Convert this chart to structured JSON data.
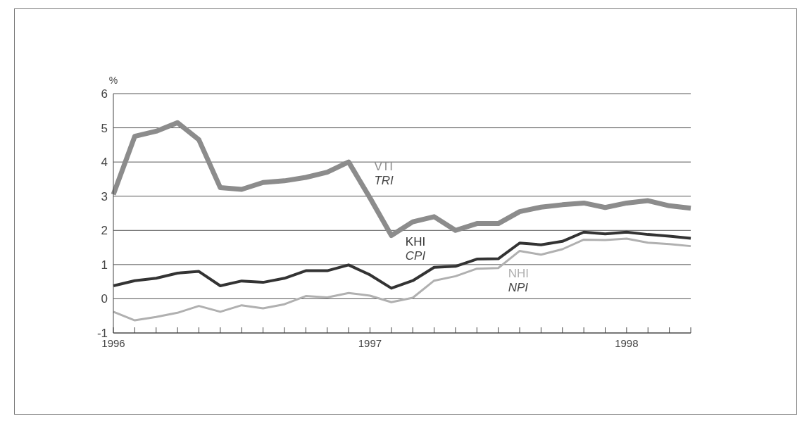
{
  "chart_data": {
    "type": "line",
    "ylabel": "%",
    "categories": [
      "1996",
      null,
      null,
      null,
      null,
      null,
      null,
      null,
      null,
      null,
      null,
      null,
      "1997",
      null,
      null,
      null,
      null,
      null,
      null,
      null,
      null,
      null,
      null,
      null,
      "1998",
      null,
      null,
      null
    ],
    "series": [
      {
        "name": "VTI",
        "color": "#8c8c8c",
        "values": [
          3.05,
          4.75,
          4.9,
          5.15,
          4.65,
          3.25,
          3.2,
          3.4,
          3.45,
          3.55,
          3.7,
          4.0,
          2.95,
          1.85,
          2.25,
          2.4,
          2.0,
          2.2,
          2.2,
          2.55,
          2.68,
          2.75,
          2.8,
          2.67,
          2.8,
          2.87,
          2.72,
          2.65
        ]
      },
      {
        "name": "KHI",
        "color": "#333333",
        "values": [
          0.38,
          0.53,
          0.6,
          0.75,
          0.8,
          0.38,
          0.52,
          0.48,
          0.6,
          0.82,
          0.82,
          0.99,
          0.7,
          0.31,
          0.53,
          0.92,
          0.95,
          1.16,
          1.17,
          1.63,
          1.58,
          1.68,
          1.95,
          1.9,
          1.95,
          1.88,
          1.83,
          1.77
        ]
      },
      {
        "name": "NHI",
        "color": "#b0b0b0",
        "values": [
          -0.38,
          -0.63,
          -0.53,
          -0.41,
          -0.21,
          -0.38,
          -0.19,
          -0.28,
          -0.16,
          0.08,
          0.04,
          0.17,
          0.09,
          -0.1,
          0.03,
          0.53,
          0.66,
          0.88,
          0.9,
          1.4,
          1.29,
          1.45,
          1.73,
          1.72,
          1.76,
          1.64,
          1.6,
          1.54
        ]
      }
    ],
    "annotations": [
      "TRI",
      "CPI",
      "NPI"
    ],
    "ylim": [
      -1,
      6
    ],
    "yticks": [
      -1,
      0,
      1,
      2,
      3,
      4,
      5,
      6
    ],
    "grid": "y",
    "legend": false,
    "marker": "none",
    "line_style": "solid"
  }
}
